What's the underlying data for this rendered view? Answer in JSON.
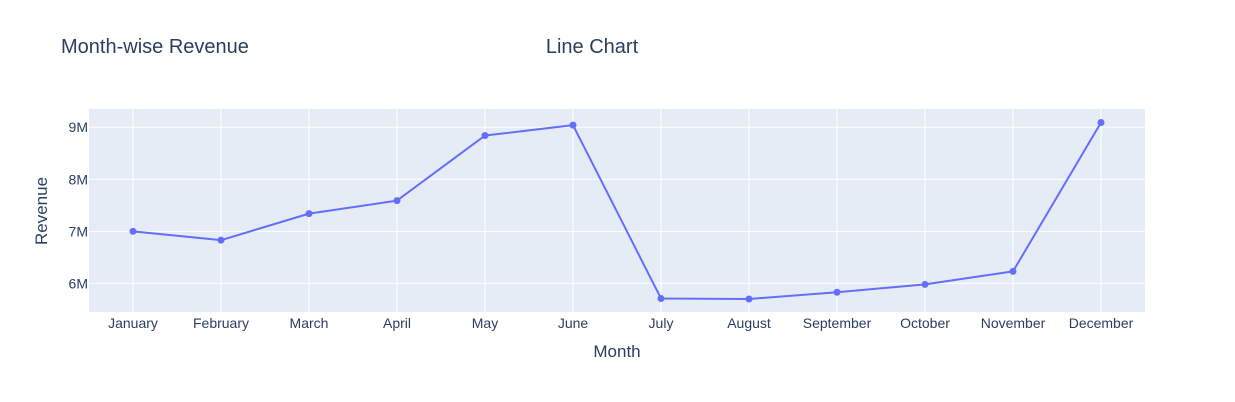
{
  "chart_title": "Month-wise Revenue",
  "chart_subtitle": "Line Chart",
  "colors": {
    "plot_background": "#e5ecf6",
    "grid": "#ffffff",
    "line": "#636efa",
    "text": "#2a3f5f"
  },
  "chart_data": {
    "type": "line",
    "title": "Month-wise Revenue",
    "subtitle": "Line Chart",
    "xlabel": "Month",
    "ylabel": "Revenue",
    "categories": [
      "January",
      "February",
      "March",
      "April",
      "May",
      "June",
      "July",
      "August",
      "September",
      "October",
      "November",
      "December"
    ],
    "series": [
      {
        "values": [
          7000000,
          6830000,
          7340000,
          7590000,
          8840000,
          9040000,
          5710000,
          5700000,
          5830000,
          5980000,
          6230000,
          9090000
        ]
      }
    ],
    "ylim": [
      5450000,
      9350000
    ],
    "yticks": [
      6000000,
      7000000,
      8000000,
      9000000
    ],
    "ytick_labels": [
      "6M",
      "7M",
      "8M",
      "9M"
    ],
    "grid": true,
    "markers": true
  }
}
